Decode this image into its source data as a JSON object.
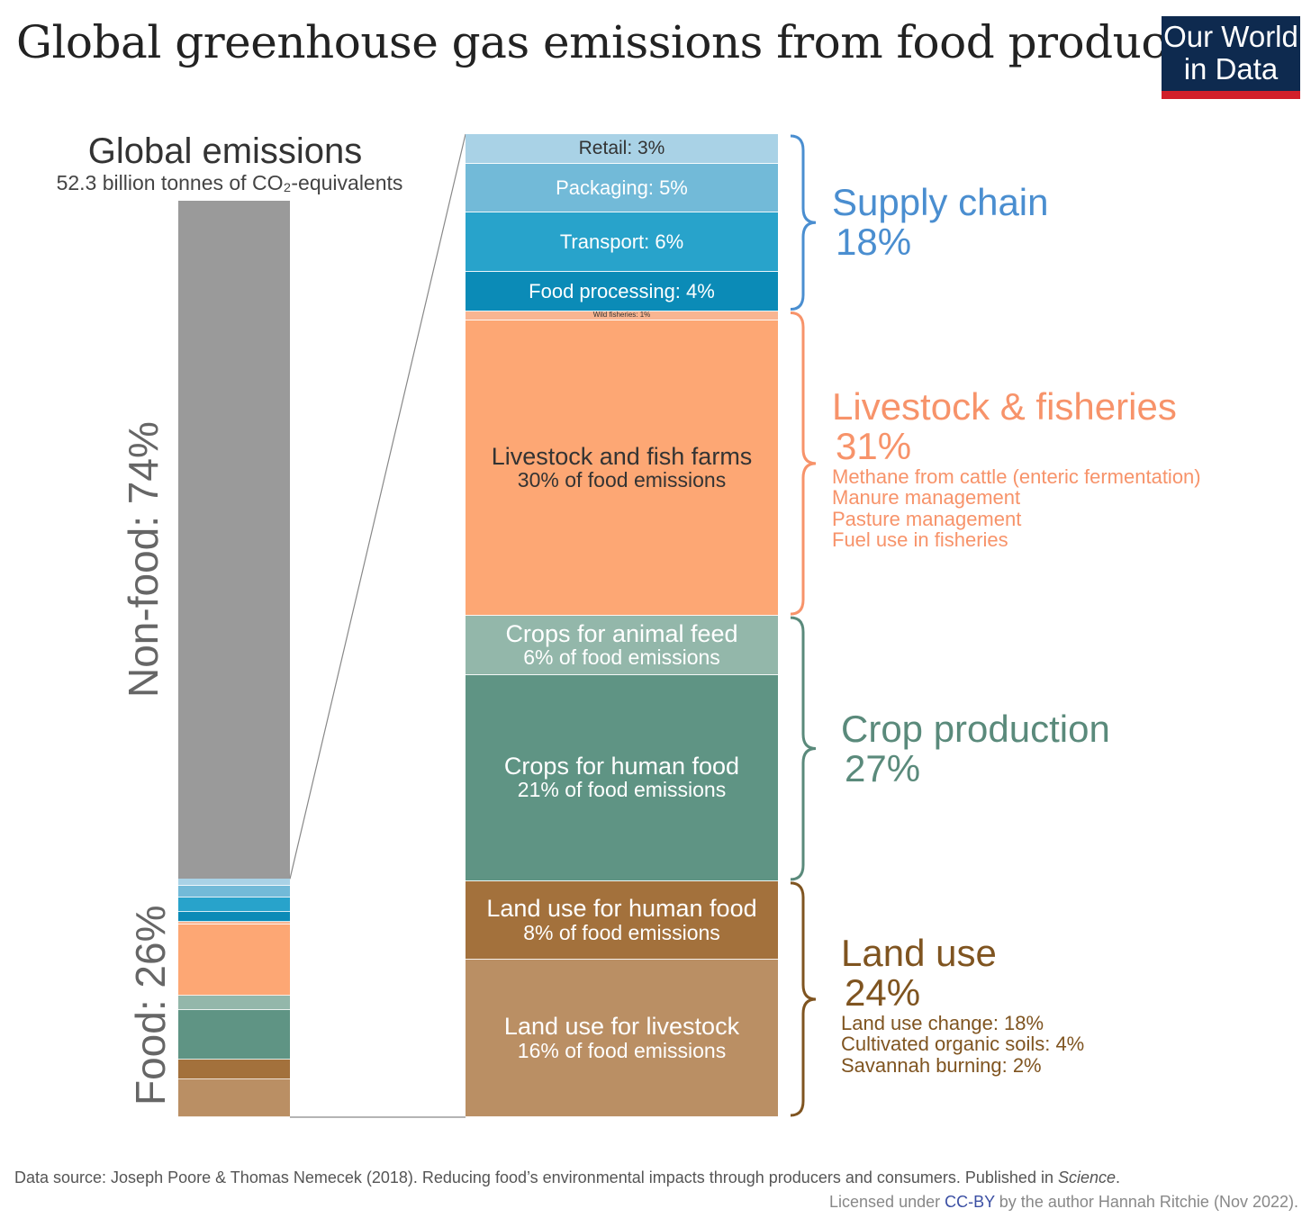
{
  "title": "Global greenhouse gas emissions from food production",
  "logo": {
    "line1": "Our World",
    "line2": "in Data"
  },
  "global_block": {
    "heading": "Global emissions",
    "subheading": "52.3 billion tonnes of CO₂-equivalents",
    "nonfood_label": "Non-food: 74%",
    "food_label": "Food: 26%"
  },
  "chart_data": {
    "type": "stacked-bar",
    "title": "Global greenhouse gas emissions from food production",
    "global_total": "52.3 billion tonnes of CO₂-equivalents",
    "global_split": [
      {
        "name": "Non-food",
        "value": 74
      },
      {
        "name": "Food",
        "value": 26
      }
    ],
    "segments": [
      {
        "label": "Retail: 3%",
        "name": "Retail",
        "value": 3,
        "group": "supply",
        "color": "#a9d2e6",
        "text_color": "#333333",
        "font": 21
      },
      {
        "label": "Packaging: 5%",
        "name": "Packaging",
        "value": 5,
        "group": "supply",
        "color": "#72bad8",
        "text_color": "#ffffff",
        "font": 22
      },
      {
        "label": "Transport: 6%",
        "name": "Transport",
        "value": 6,
        "group": "supply",
        "color": "#28a3cb",
        "text_color": "#ffffff",
        "font": 22
      },
      {
        "label": "Food processing: 4%",
        "name": "Food processing",
        "value": 4,
        "group": "supply",
        "color": "#0b8bb7",
        "text_color": "#ffffff",
        "font": 22
      },
      {
        "label": "Wild fisheries: 1%",
        "name": "Wild fisheries",
        "value": 1,
        "group": "livestock",
        "color": "#f9b591",
        "text_color": "#333333",
        "font": 8
      },
      {
        "label": "Livestock and fish farms",
        "sublabel": "30% of food emissions",
        "name": "Livestock and fish farms",
        "value": 30,
        "group": "livestock",
        "color": "#fda774",
        "text_color": "#333333",
        "font": 27
      },
      {
        "label": "Crops for animal feed",
        "sublabel": "6% of food emissions",
        "name": "Crops for animal feed",
        "value": 6,
        "group": "crops",
        "color": "#93b7aa",
        "text_color": "#ffffff",
        "font": 27
      },
      {
        "label": "Crops for human food",
        "sublabel": "21% of food emissions",
        "name": "Crops for human food",
        "value": 21,
        "group": "crops",
        "color": "#5f9484",
        "text_color": "#ffffff",
        "font": 27
      },
      {
        "label": "Land use for human food",
        "sublabel": "8% of food emissions",
        "name": "Land use for human food",
        "value": 8,
        "group": "landuse",
        "color": "#a3713c",
        "text_color": "#ffffff",
        "font": 27
      },
      {
        "label": "Land use for livestock",
        "sublabel": "16% of food emissions",
        "name": "Land use for livestock",
        "value": 16,
        "group": "landuse",
        "color": "#ba8f64",
        "text_color": "#ffffff",
        "font": 27
      }
    ],
    "groups": [
      {
        "id": "supply",
        "name": "Supply chain",
        "pct": "18%",
        "color": "#4a8ed0",
        "details": []
      },
      {
        "id": "livestock",
        "name": "Livestock & fisheries",
        "pct": "31%",
        "color": "#f7936a",
        "details": [
          "Methane from cattle (enteric fermentation)",
          "Manure management",
          "Pasture management",
          "Fuel use in fisheries"
        ]
      },
      {
        "id": "crops",
        "name": "Crop production",
        "pct": "27%",
        "color": "#5a8a7b",
        "details": []
      },
      {
        "id": "landuse",
        "name": "Land use",
        "pct": "24%",
        "color": "#7f5420",
        "details": [
          "Land use change: 18%",
          "Cultivated organic soils: 4%",
          "Savannah burning: 2%"
        ]
      }
    ]
  },
  "footer": {
    "source_prefix": "Data source: Joseph Poore & Thomas Nemecek (2018). Reducing food’s environmental impacts through producers and consumers. Published in ",
    "source_journal": "Science",
    "source_suffix": ".",
    "license_prefix": "Licensed under ",
    "license_link": "CC-BY",
    "license_suffix": " by the author Hannah Ritchie (Nov 2022)."
  }
}
